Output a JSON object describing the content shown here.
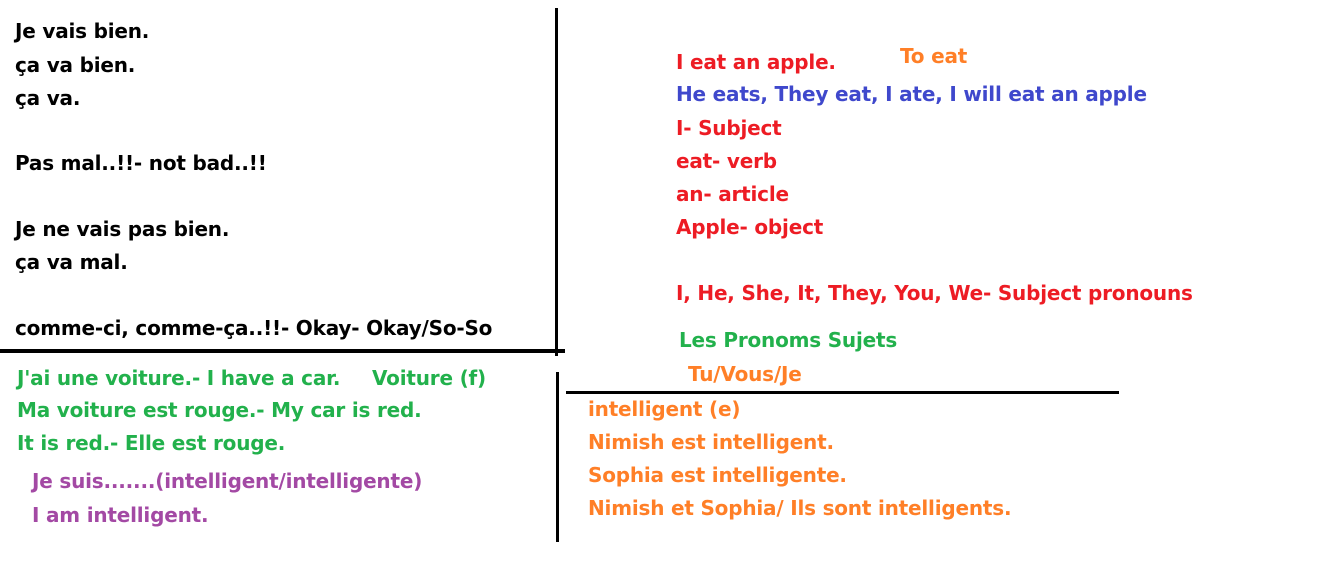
{
  "colors": {
    "black": "#000000",
    "red": "#ed1c24",
    "orange": "#ff7f27",
    "blue": "#3f48cc",
    "green": "#22b14c",
    "purple": "#a349a4"
  },
  "top_left": {
    "lines": [
      "Je vais bien.",
      "ça va bien.",
      "ça va.",
      "Pas mal..!!- not bad..!!",
      "Je ne vais pas bien.",
      "ça va mal.",
      "comme-ci, comme-ça..!!- Okay- Okay/So-So"
    ]
  },
  "top_right": {
    "sentence": "I eat an apple.",
    "infinitive": "To eat",
    "conjugations": "He eats, They eat, I ate, I will eat an apple",
    "parts": [
      "I- Subject",
      "eat- verb",
      "an- article",
      "Apple- object"
    ],
    "pronouns": "I, He, She, It, They, You, We- Subject pronouns",
    "french_heading": "Les Pronoms Sujets",
    "tu_vous": "Tu/Vous/Je"
  },
  "bottom_left": {
    "green_lines": [
      "J'ai une voiture.- I have a car.",
      "Ma voiture est rouge.- My car is red.",
      "It is red.- Elle est rouge."
    ],
    "voiture_note": "Voiture (f)",
    "purple_lines": [
      "Je suis.......(intelligent/intelligente)",
      "I am intelligent."
    ]
  },
  "bottom_right": {
    "lines": [
      "intelligent (e)",
      "Nimish est intelligent.",
      "Sophia est intelligente.",
      "Nimish et Sophia/ Ils sont intelligents."
    ]
  }
}
